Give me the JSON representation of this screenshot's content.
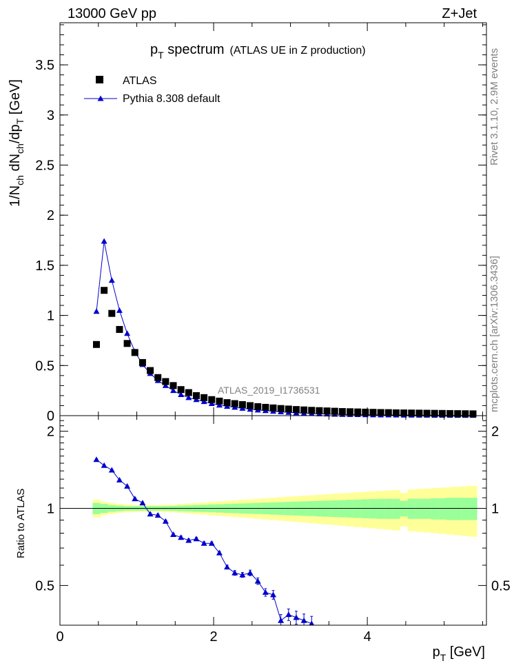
{
  "header": {
    "left": "13000 GeV pp",
    "right": "Z+Jet"
  },
  "title": {
    "main": "p",
    "main_sub": "T",
    "main_rest": " spectrum",
    "sub": "(ATLAS UE in Z production)"
  },
  "analysis_label": "ATLAS_2019_I1736531",
  "side_text": {
    "rivet": "Rivet 3.1.10, 2.9M events",
    "mcplots": "mcplots.cern.ch [arXiv:1306.3436]"
  },
  "legend": {
    "data_label": "ATLAS",
    "mc_label": "Pythia 8.308 default"
  },
  "colors": {
    "data": "#000000",
    "mc": "#0000cc",
    "band_inner": "#99ff99",
    "band_outer": "#ffff99"
  },
  "chart_data": [
    {
      "type": "scatter",
      "ylabel_parts": [
        "1/N",
        "ch",
        " dN",
        "ch",
        "/dp",
        "T",
        " [GeV]"
      ],
      "xlim": [
        0,
        5.55
      ],
      "ylim": [
        0,
        3.92
      ],
      "yticks": [
        "0",
        "0.5",
        "1",
        "1.5",
        "2",
        "2.5",
        "3",
        "3.5"
      ],
      "ytick_values": [
        0,
        0.5,
        1,
        1.5,
        2,
        2.5,
        3,
        3.5
      ],
      "x": [
        0.475,
        0.575,
        0.675,
        0.775,
        0.875,
        0.975,
        1.075,
        1.175,
        1.275,
        1.375,
        1.475,
        1.575,
        1.675,
        1.775,
        1.875,
        1.975,
        2.075,
        2.175,
        2.275,
        2.375,
        2.475,
        2.575,
        2.675,
        2.775,
        2.875,
        2.975,
        3.075,
        3.175,
        3.275,
        3.375,
        3.475,
        3.575,
        3.675,
        3.775,
        3.875,
        3.975,
        4.075,
        4.175,
        4.275,
        4.375,
        4.475,
        4.575,
        4.675,
        4.775,
        4.875,
        4.975,
        5.075,
        5.175,
        5.275,
        5.375
      ],
      "series": [
        {
          "name": "ATLAS",
          "y": [
            0.71,
            1.25,
            1.02,
            0.86,
            0.72,
            0.63,
            0.53,
            0.45,
            0.38,
            0.34,
            0.3,
            0.26,
            0.23,
            0.2,
            0.18,
            0.16,
            0.145,
            0.13,
            0.12,
            0.11,
            0.1,
            0.09,
            0.083,
            0.077,
            0.071,
            0.066,
            0.061,
            0.057,
            0.053,
            0.05,
            0.047,
            0.044,
            0.041,
            0.039,
            0.037,
            0.035,
            0.033,
            0.031,
            0.03,
            0.028,
            0.027,
            0.026,
            0.025,
            0.024,
            0.023,
            0.022,
            0.021,
            0.02,
            0.019,
            0.018
          ]
        },
        {
          "name": "Pythia 8.308 default",
          "y": [
            1.04,
            1.74,
            1.35,
            1.05,
            0.82,
            0.64,
            0.51,
            0.42,
            0.35,
            0.3,
            0.25,
            0.21,
            0.18,
            0.16,
            0.14,
            0.12,
            0.105,
            0.093,
            0.083,
            0.073,
            0.064,
            0.056,
            0.05,
            0.044,
            0.038,
            0.033,
            0.028,
            0.024,
            0.021,
            0.018,
            0.016,
            0.014,
            0.012,
            0.011,
            0.01,
            0.009,
            0.008,
            0.007,
            0.0065,
            0.006,
            0.0055,
            0.005,
            0.0045,
            0.004,
            0.0037,
            0.0034,
            0.0031,
            0.0028,
            0.0025,
            0.0022
          ]
        }
      ]
    },
    {
      "type": "scatter",
      "ylabel": "Ratio to ATLAS",
      "xlabel_parts": [
        "p",
        "T",
        " [GeV]"
      ],
      "xlim": [
        0,
        5.55
      ],
      "ylim": [
        0.35,
        2.3
      ],
      "yticks": [
        "0.5",
        "1",
        "2"
      ],
      "ytick_values": [
        0.5,
        1,
        2
      ],
      "xticks": [
        "0",
        "2",
        "4"
      ],
      "xtick_values": [
        0,
        2,
        4
      ],
      "x": [
        0.475,
        0.575,
        0.675,
        0.775,
        0.875,
        0.975,
        1.075,
        1.175,
        1.275,
        1.375,
        1.475,
        1.575,
        1.675,
        1.775,
        1.875,
        1.975,
        2.075,
        2.175,
        2.275,
        2.375,
        2.475,
        2.575,
        2.675,
        2.775,
        2.875,
        2.975,
        3.075,
        3.175,
        3.275
      ],
      "series": [
        {
          "name": "Pythia 8.308 default",
          "y": [
            1.55,
            1.47,
            1.41,
            1.29,
            1.22,
            1.09,
            1.05,
            0.95,
            0.94,
            0.89,
            0.79,
            0.77,
            0.75,
            0.76,
            0.73,
            0.73,
            0.67,
            0.59,
            0.56,
            0.55,
            0.56,
            0.52,
            0.47,
            0.46,
            0.365,
            0.385,
            0.375,
            0.365,
            0.355
          ],
          "err": [
            0.01,
            0.01,
            0.01,
            0.01,
            0.01,
            0.01,
            0.01,
            0.01,
            0.01,
            0.01,
            0.01,
            0.01,
            0.01,
            0.01,
            0.01,
            0.01,
            0.01,
            0.01,
            0.012,
            0.012,
            0.014,
            0.015,
            0.016,
            0.018,
            0.02,
            0.02,
            0.022,
            0.022,
            0.024
          ]
        }
      ],
      "band_edges": [
        0.425,
        0.525,
        0.625,
        0.725,
        0.825,
        0.925,
        1.025,
        1.125,
        1.225,
        1.325,
        1.425,
        1.525,
        1.625,
        1.725,
        1.825,
        1.925,
        2.025,
        2.125,
        2.225,
        2.325,
        2.425,
        2.525,
        2.625,
        2.725,
        2.825,
        2.925,
        3.025,
        3.125,
        3.225,
        3.325,
        3.425,
        3.525,
        3.625,
        3.725,
        3.825,
        3.925,
        4.025,
        4.125,
        4.225,
        4.325,
        4.425,
        4.525,
        4.625,
        4.725,
        4.825,
        4.925,
        5.025,
        5.125,
        5.225,
        5.325,
        5.425
      ],
      "band_inner": [
        0.05,
        0.04,
        0.03,
        0.025,
        0.02,
        0.02,
        0.02,
        0.02,
        0.02,
        0.02,
        0.022,
        0.025,
        0.027,
        0.03,
        0.032,
        0.035,
        0.037,
        0.04,
        0.042,
        0.045,
        0.047,
        0.05,
        0.052,
        0.055,
        0.057,
        0.06,
        0.062,
        0.065,
        0.067,
        0.07,
        0.072,
        0.075,
        0.077,
        0.08,
        0.082,
        0.085,
        0.087,
        0.09,
        0.09,
        0.09,
        0.07,
        0.09,
        0.09,
        0.09,
        0.095,
        0.095,
        0.1,
        0.1,
        0.1,
        0.1
      ],
      "band_outer": [
        0.08,
        0.06,
        0.05,
        0.04,
        0.035,
        0.03,
        0.03,
        0.03,
        0.03,
        0.032,
        0.035,
        0.04,
        0.045,
        0.05,
        0.055,
        0.06,
        0.065,
        0.07,
        0.075,
        0.08,
        0.085,
        0.09,
        0.095,
        0.1,
        0.105,
        0.11,
        0.115,
        0.12,
        0.125,
        0.13,
        0.135,
        0.14,
        0.145,
        0.15,
        0.155,
        0.16,
        0.165,
        0.17,
        0.175,
        0.18,
        0.15,
        0.185,
        0.19,
        0.195,
        0.2,
        0.205,
        0.21,
        0.215,
        0.22,
        0.225
      ]
    }
  ]
}
